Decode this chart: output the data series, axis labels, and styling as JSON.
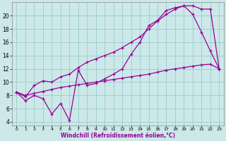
{
  "xlabel": "Windchill (Refroidissement éolien,°C)",
  "bg_color": "#cce8e8",
  "grid_color": "#99cccc",
  "line_color": "#990099",
  "xlim": [
    -0.5,
    23.5
  ],
  "ylim": [
    3.5,
    22.0
  ],
  "yticks": [
    4,
    6,
    8,
    10,
    12,
    14,
    16,
    18,
    20
  ],
  "xticks": [
    0,
    1,
    2,
    3,
    4,
    5,
    6,
    7,
    8,
    9,
    10,
    11,
    12,
    13,
    14,
    15,
    16,
    17,
    18,
    19,
    20,
    21,
    22,
    23
  ],
  "line1_x": [
    0,
    1,
    2,
    3,
    4,
    5,
    6,
    7,
    8,
    9,
    10,
    11,
    12,
    13,
    14,
    15,
    16,
    17,
    18,
    19,
    20,
    21,
    22,
    23
  ],
  "line1_y": [
    8.5,
    7.2,
    8.0,
    7.5,
    5.2,
    6.8,
    4.2,
    11.8,
    9.5,
    9.8,
    10.5,
    11.2,
    12.0,
    14.2,
    16.0,
    18.5,
    19.3,
    20.8,
    21.2,
    21.5,
    20.2,
    17.5,
    14.7,
    12.0
  ],
  "line2_x": [
    0,
    1,
    2,
    3,
    4,
    5,
    6,
    7,
    8,
    9,
    10,
    11,
    12,
    13,
    14,
    15,
    16,
    17,
    18,
    19,
    20,
    21,
    22,
    23
  ],
  "line2_y": [
    8.5,
    7.8,
    9.5,
    10.2,
    10.0,
    10.8,
    11.2,
    12.2,
    13.0,
    13.5,
    14.0,
    14.5,
    15.2,
    16.0,
    16.8,
    18.0,
    19.2,
    20.2,
    21.0,
    21.5,
    21.5,
    21.0,
    21.0,
    12.0
  ],
  "line3_x": [
    0,
    1,
    2,
    3,
    4,
    5,
    6,
    7,
    8,
    9,
    10,
    11,
    12,
    13,
    14,
    15,
    16,
    17,
    18,
    19,
    20,
    21,
    22,
    23
  ],
  "line3_y": [
    8.5,
    8.0,
    8.3,
    8.6,
    8.9,
    9.2,
    9.4,
    9.6,
    9.8,
    10.0,
    10.2,
    10.4,
    10.6,
    10.8,
    11.0,
    11.2,
    11.5,
    11.8,
    12.0,
    12.2,
    12.4,
    12.6,
    12.7,
    12.0
  ]
}
